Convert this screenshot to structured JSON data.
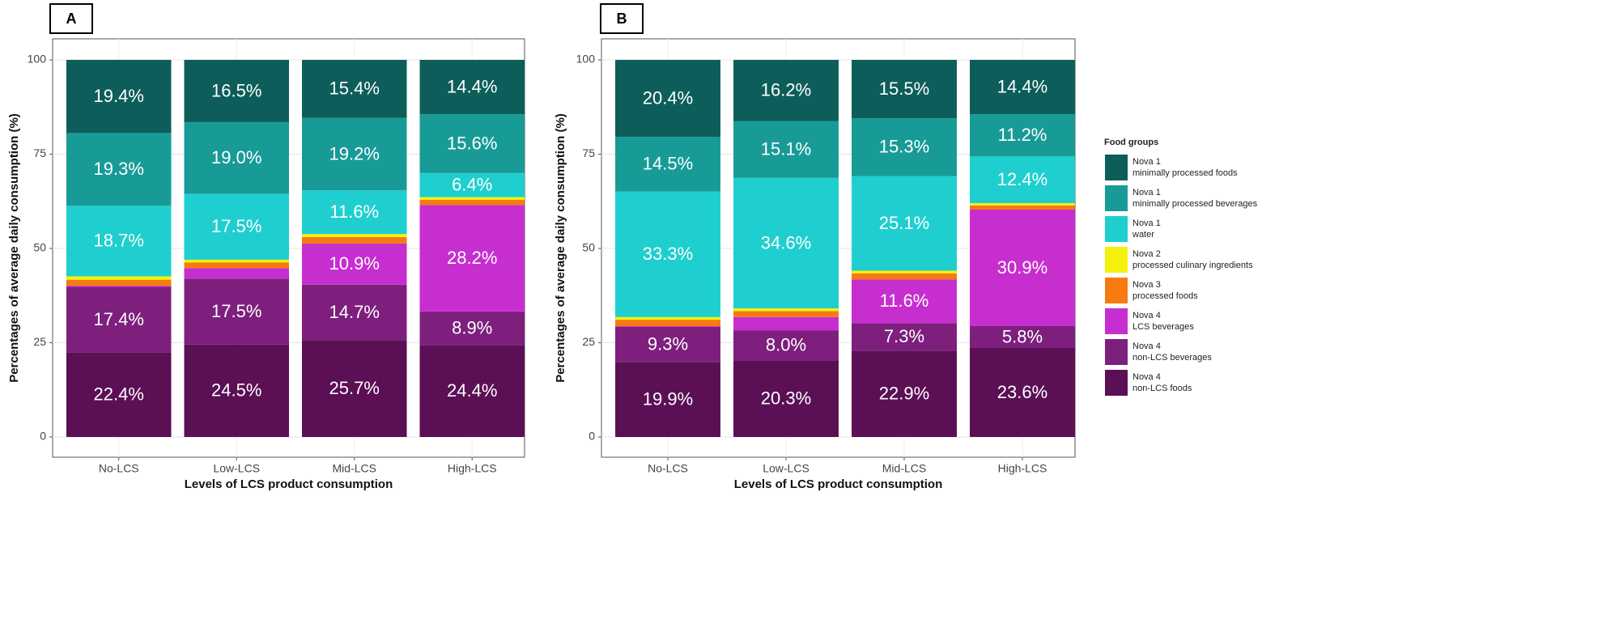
{
  "chart_data": [
    {
      "type": "bar",
      "stacked": true,
      "panel_label": "A",
      "x_label": "Levels of LCS product consumption",
      "y_label": "Percentages of average daily consumption (%)",
      "categories": [
        "No-LCS",
        "Low-LCS",
        "Mid-LCS",
        "High-LCS"
      ],
      "ylim": [
        0,
        100
      ],
      "yticks": [
        0,
        25,
        50,
        75,
        100
      ],
      "grid": true,
      "series": [
        {
          "color": "#5b0f55",
          "values": [
            22.4,
            24.5,
            25.7,
            24.4
          ],
          "value_labels": [
            "22.4%",
            "24.5%",
            "25.7%",
            "24.4%"
          ]
        },
        {
          "color": "#7e1f7d",
          "values": [
            17.4,
            17.5,
            14.7,
            8.9
          ],
          "value_labels": [
            "17.4%",
            "17.5%",
            "14.7%",
            "8.9%"
          ]
        },
        {
          "color": "#c72ecf",
          "values": [
            0.3,
            2.8,
            10.9,
            28.2
          ],
          "value_labels": [
            null,
            null,
            "10.9%",
            "28.2%"
          ]
        },
        {
          "color": "#f77a10",
          "values": [
            1.6,
            1.5,
            1.7,
            1.4
          ]
        },
        {
          "color": "#f4f20c",
          "values": [
            0.9,
            0.7,
            0.8,
            0.7
          ]
        },
        {
          "color": "#1fcfcf",
          "values": [
            18.7,
            17.5,
            11.6,
            6.4
          ],
          "value_labels": [
            "18.7%",
            "17.5%",
            "11.6%",
            "6.4%"
          ]
        },
        {
          "color": "#189b97",
          "values": [
            19.3,
            19.0,
            19.2,
            15.6
          ],
          "value_labels": [
            "19.3%",
            "19.0%",
            "19.2%",
            "15.6%"
          ]
        },
        {
          "color": "#0d5e5a",
          "values": [
            19.4,
            16.5,
            15.4,
            14.4
          ],
          "value_labels": [
            "19.4%",
            "16.5%",
            "15.4%",
            "14.4%"
          ]
        }
      ]
    },
    {
      "type": "bar",
      "stacked": true,
      "panel_label": "B",
      "x_label": "Levels of LCS product consumption",
      "y_label": "Percentages of average daily consumption (%)",
      "categories": [
        "No-LCS",
        "Low-LCS",
        "Mid-LCS",
        "High-LCS"
      ],
      "ylim": [
        0,
        100
      ],
      "yticks": [
        0,
        25,
        50,
        75,
        100
      ],
      "grid": true,
      "legend_title": "Food groups",
      "series": [
        {
          "name": "Nova 4\nnon-LCS foods",
          "color": "#5b0f55",
          "values": [
            19.9,
            20.3,
            22.9,
            23.6
          ],
          "value_labels": [
            "19.9%",
            "20.3%",
            "22.9%",
            "23.6%"
          ]
        },
        {
          "name": "Nova 4\nnon-LCS beverages",
          "color": "#7e1f7d",
          "values": [
            9.3,
            8.0,
            7.3,
            5.8
          ],
          "value_labels": [
            "9.3%",
            "8.0%",
            "7.3%",
            "5.8%"
          ]
        },
        {
          "name": "Nova 4\nLCS beverages",
          "color": "#c72ecf",
          "values": [
            0.2,
            3.5,
            11.6,
            30.9
          ],
          "value_labels": [
            null,
            null,
            "11.6%",
            "30.9%"
          ]
        },
        {
          "name": "Nova 3\nprocessed foods",
          "color": "#f77a10",
          "values": [
            1.7,
            1.6,
            1.6,
            1.1
          ]
        },
        {
          "name": "Nova 2\nprocessed culinary ingredients",
          "color": "#f4f20c",
          "values": [
            0.7,
            0.7,
            0.7,
            0.6
          ]
        },
        {
          "name": "Nova 1\nwater",
          "color": "#1fcfcf",
          "values": [
            33.3,
            34.6,
            25.1,
            12.4
          ],
          "value_labels": [
            "33.3%",
            "34.6%",
            "25.1%",
            "12.4%"
          ]
        },
        {
          "name": "Nova 1\nminimally processed beverages",
          "color": "#189b97",
          "values": [
            14.5,
            15.1,
            15.3,
            11.2
          ],
          "value_labels": [
            "14.5%",
            "15.1%",
            "15.3%",
            "11.2%"
          ]
        },
        {
          "name": "Nova 1\nminimally processed foods",
          "color": "#0d5e5a",
          "values": [
            20.4,
            16.2,
            15.5,
            14.4
          ],
          "value_labels": [
            "20.4%",
            "16.2%",
            "15.5%",
            "14.4%"
          ]
        }
      ]
    }
  ]
}
